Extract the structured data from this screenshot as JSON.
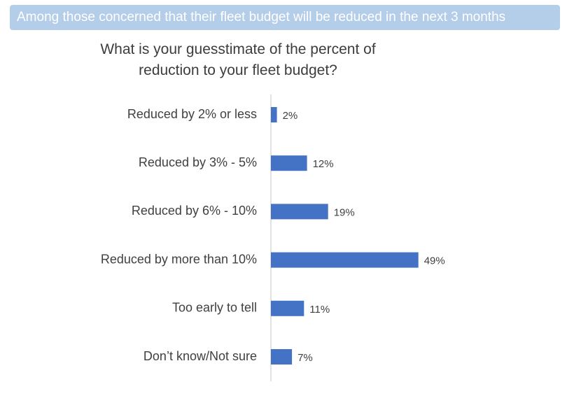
{
  "header": {
    "banner_text": "Among those concerned that their fleet budget will be reduced in the next 3 months",
    "banner_color": "#b4cde9"
  },
  "chart_data": {
    "type": "bar",
    "orientation": "horizontal",
    "title": "What is your guesstimate of the percent of\nreduction to your fleet budget?",
    "categories": [
      "Reduced by 2% or less",
      "Reduced by 3% - 5%",
      "Reduced by 6% - 10%",
      "Reduced by more than 10%",
      "Too early to tell",
      "Don’t know/Not sure"
    ],
    "values": [
      2,
      12,
      19,
      49,
      11,
      7
    ],
    "value_labels": [
      "2%",
      "12%",
      "19%",
      "49%",
      "11%",
      "7%"
    ],
    "unit": "%",
    "xlim": [
      0,
      100
    ],
    "bar_color": "#4472c4",
    "axis_color": "#d9d9d9",
    "grid": false,
    "legend": "none"
  }
}
